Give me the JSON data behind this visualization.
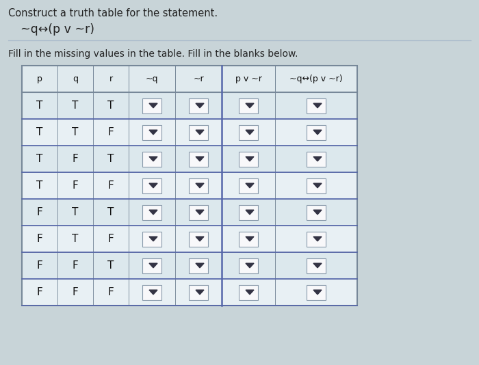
{
  "title_line1": "Construct a truth table for the statement.",
  "title_line2": "~q↔(p v ~r)",
  "subtitle": "Fill in the missing values in the table. Fill in the blanks below.",
  "col_header_display": [
    "p",
    "q",
    "r",
    "~q",
    "~r",
    "p v ~r",
    "~q↔(p v ~r)"
  ],
  "rows": [
    [
      "T",
      "T",
      "T"
    ],
    [
      "T",
      "T",
      "F"
    ],
    [
      "T",
      "F",
      "T"
    ],
    [
      "T",
      "F",
      "F"
    ],
    [
      "F",
      "T",
      "T"
    ],
    [
      "F",
      "T",
      "F"
    ],
    [
      "F",
      "F",
      "T"
    ],
    [
      "F",
      "F",
      "F"
    ]
  ],
  "background_color": "#c8d4d8",
  "cell_bg_light": "#dce8ed",
  "cell_bg_lighter": "#e8f0f4",
  "header_bg": "#e0eaee",
  "dropdown_rect_bg": "#f0f4f8",
  "dropdown_border": "#8899aa",
  "dropdown_arrow": "#333344",
  "text_color": "#111111",
  "table_border_color": "#778899",
  "separator_color": "#5566aa",
  "title_color": "#222222"
}
